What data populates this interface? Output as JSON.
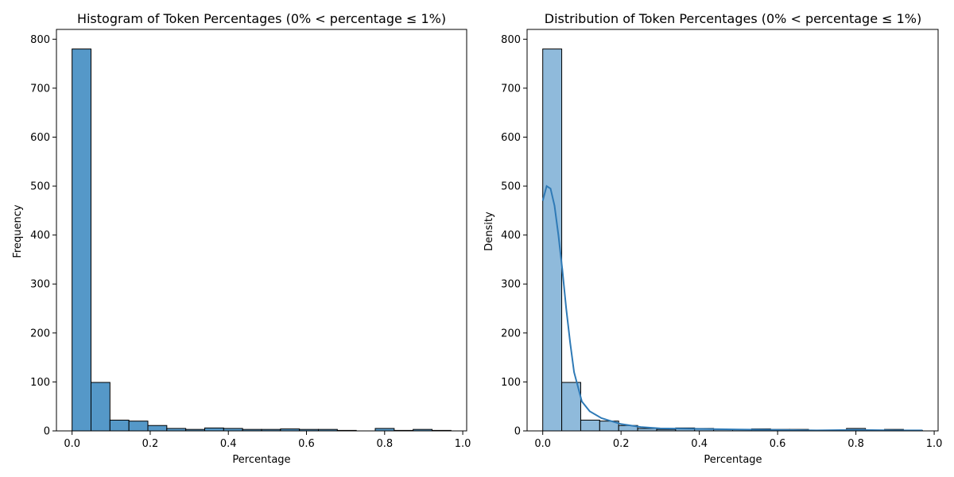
{
  "colors": {
    "hist_fill_left": "#5598c8",
    "hist_fill_right": "#8fbadb",
    "edge": "#000000",
    "kde_line": "#2f7ab6"
  },
  "chart_data": [
    {
      "type": "bar",
      "title": "Histogram of Token Percentages (0% < percentage ≤ 1%)",
      "xlabel": "Percentage",
      "ylabel": "Frequency",
      "xlim": [
        -0.04,
        1.01
      ],
      "ylim": [
        0,
        820
      ],
      "xticks": [
        0.0,
        0.2,
        0.4,
        0.6,
        0.8,
        1.0
      ],
      "xtick_labels": [
        "0.0",
        "0.2",
        "0.4",
        "0.6",
        "0.8",
        "1.0"
      ],
      "yticks": [
        0,
        100,
        200,
        300,
        400,
        500,
        600,
        700,
        800
      ],
      "bin_start": 0.0,
      "bin_width": 0.0485,
      "values": [
        780,
        99,
        22,
        20,
        11,
        5,
        3,
        6,
        5,
        3,
        3,
        4,
        3,
        3,
        1,
        0,
        5,
        1,
        3,
        1
      ],
      "grid": false
    },
    {
      "type": "bar",
      "title": "Distribution of Token Percentages (0% < percentage ≤ 1%)",
      "xlabel": "Percentage",
      "ylabel": "Density",
      "xlim": [
        -0.04,
        1.01
      ],
      "ylim": [
        0,
        820
      ],
      "xticks": [
        0.0,
        0.2,
        0.4,
        0.6,
        0.8,
        1.0
      ],
      "xtick_labels": [
        "0.0",
        "0.2",
        "0.4",
        "0.6",
        "0.8",
        "1.0"
      ],
      "yticks": [
        0,
        100,
        200,
        300,
        400,
        500,
        600,
        700,
        800
      ],
      "bin_start": 0.0,
      "bin_width": 0.0485,
      "values": [
        780,
        99,
        22,
        20,
        11,
        5,
        3,
        6,
        5,
        3,
        3,
        4,
        3,
        3,
        1,
        0,
        5,
        1,
        3,
        1
      ],
      "kde": {
        "x": [
          0.0,
          0.01,
          0.02,
          0.03,
          0.04,
          0.05,
          0.06,
          0.07,
          0.08,
          0.1,
          0.12,
          0.15,
          0.2,
          0.25,
          0.3,
          0.4,
          0.5,
          0.6,
          0.7,
          0.8,
          0.9,
          0.97
        ],
        "y": [
          470,
          500,
          495,
          460,
          400,
          330,
          250,
          180,
          120,
          60,
          40,
          26,
          14,
          8,
          5,
          4,
          3,
          2,
          1,
          2,
          1,
          1
        ]
      },
      "grid": false
    }
  ]
}
